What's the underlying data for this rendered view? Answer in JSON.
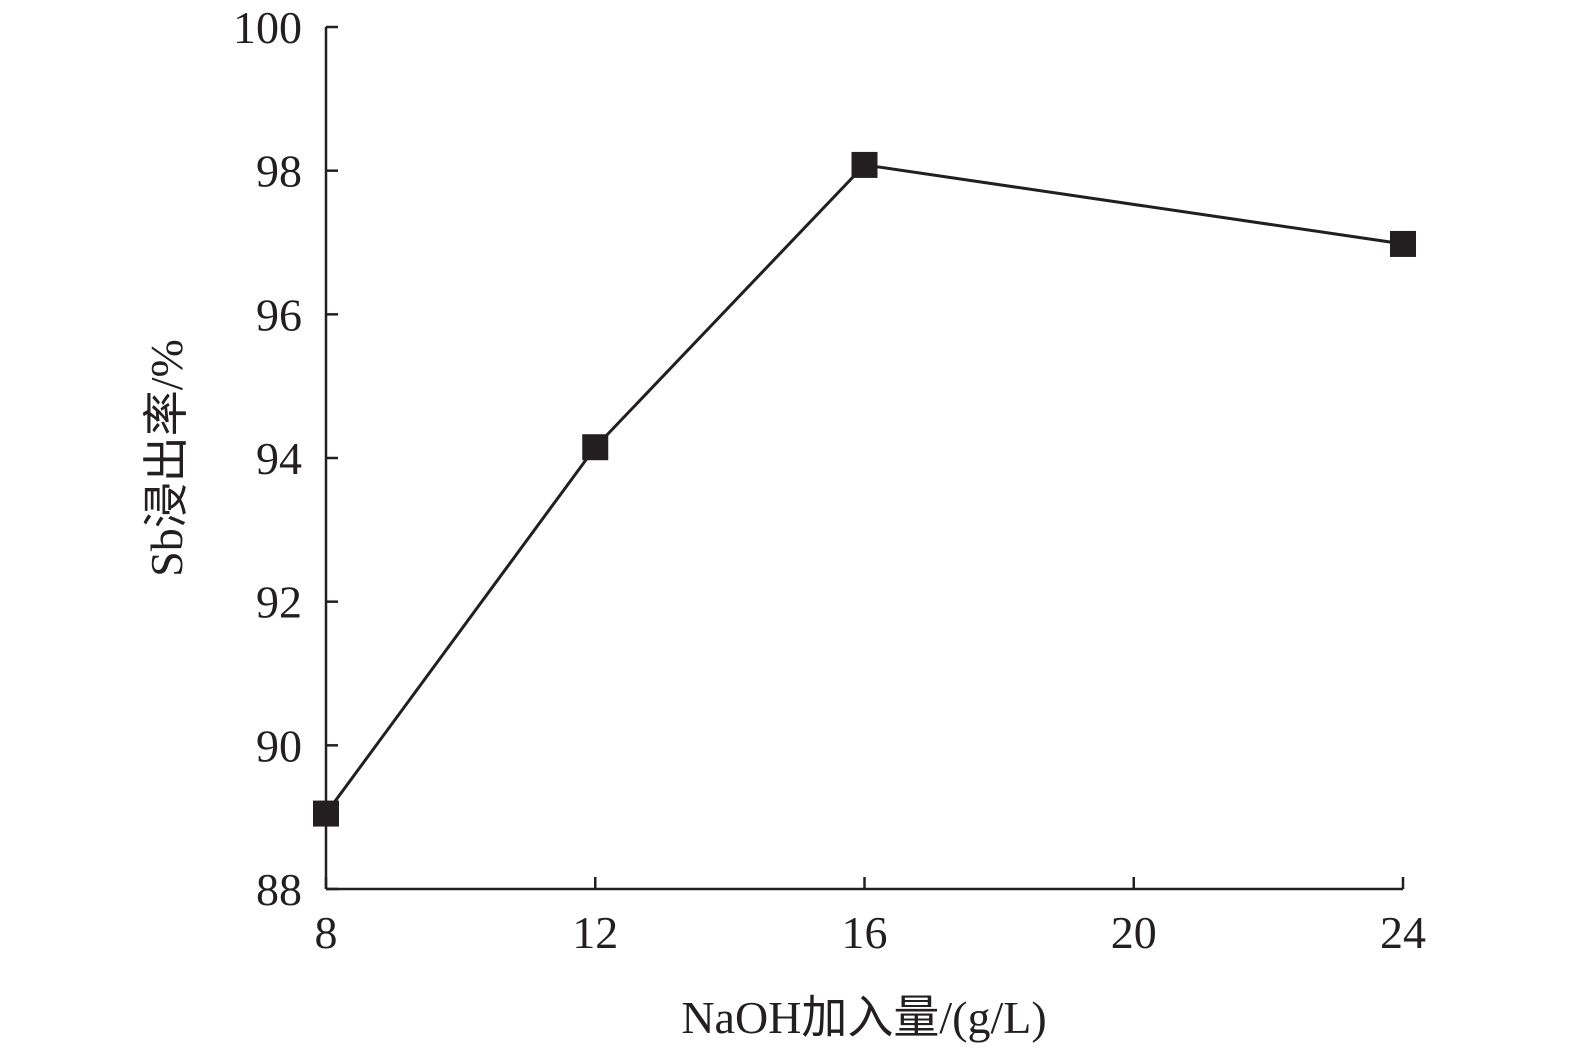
{
  "chart_data": {
    "type": "line",
    "xlabel": "NaOH加入量/(g/L)",
    "ylabel": "Sb浸出率/%",
    "x_ticks": [
      8,
      12,
      16,
      20,
      24
    ],
    "y_ticks": [
      88,
      90,
      92,
      94,
      96,
      98,
      100
    ],
    "xlim": [
      8,
      24
    ],
    "ylim": [
      88,
      100
    ],
    "grid": false,
    "marker": "square",
    "color": "#231f20",
    "series": [
      {
        "x": [
          8,
          12,
          16,
          24
        ],
        "y": [
          89.05,
          94.15,
          98.08,
          96.98
        ]
      }
    ]
  }
}
